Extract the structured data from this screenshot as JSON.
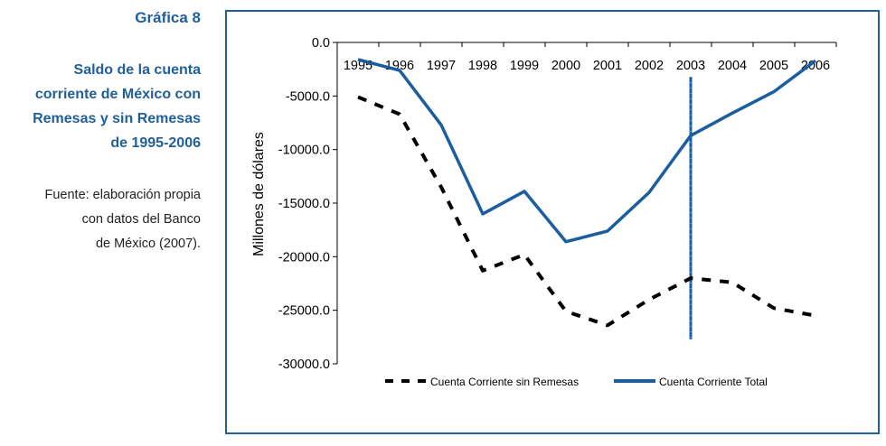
{
  "sidebar": {
    "figure_label": "Gráfica 8",
    "title_lines": [
      "Saldo de la cuenta",
      "corriente de México con",
      "Remesas y sin Remesas",
      "de 1995-2006"
    ],
    "source_lines": [
      "Fuente: elaboración propia",
      "con datos del Banco",
      "de México (2007)."
    ]
  },
  "colors": {
    "accent": "#1f5f9a",
    "series_total": "#1a5ea0",
    "series_sin": "#000000"
  },
  "chart_data": {
    "type": "line",
    "title": "",
    "xlabel": "",
    "ylabel": "Millones de dólares",
    "categories": [
      "1995",
      "1996",
      "1997",
      "1998",
      "1999",
      "2000",
      "2001",
      "2002",
      "2003",
      "2004",
      "2005",
      "2006"
    ],
    "ylim": [
      -30000,
      0
    ],
    "yticks": [
      0,
      -5000,
      -10000,
      -15000,
      -20000,
      -25000,
      -30000
    ],
    "ytick_labels": [
      "0.0",
      "-5000.0",
      "-10000.0",
      "-15000.0",
      "-20000.0",
      "-25000.0",
      "-30000.0"
    ],
    "series": [
      {
        "name": "Cuenta Corriente sin  Remesas",
        "style": "dashed",
        "color": "#000000",
        "values": [
          -5100,
          -6700,
          -13500,
          -21300,
          -19800,
          -25100,
          -26400,
          -24000,
          -22000,
          -22400,
          -24800,
          -25500
        ]
      },
      {
        "name": "Cuenta Corriente Total",
        "style": "solid",
        "color": "#1a5ea0",
        "values": [
          -1600,
          -2600,
          -7700,
          -16000,
          -13900,
          -18600,
          -17600,
          -14000,
          -8700,
          -6600,
          -4600,
          -1700
        ]
      }
    ],
    "marker_line": {
      "category": "2003",
      "from": -3200,
      "to": -27700
    },
    "legend_position": "bottom"
  }
}
